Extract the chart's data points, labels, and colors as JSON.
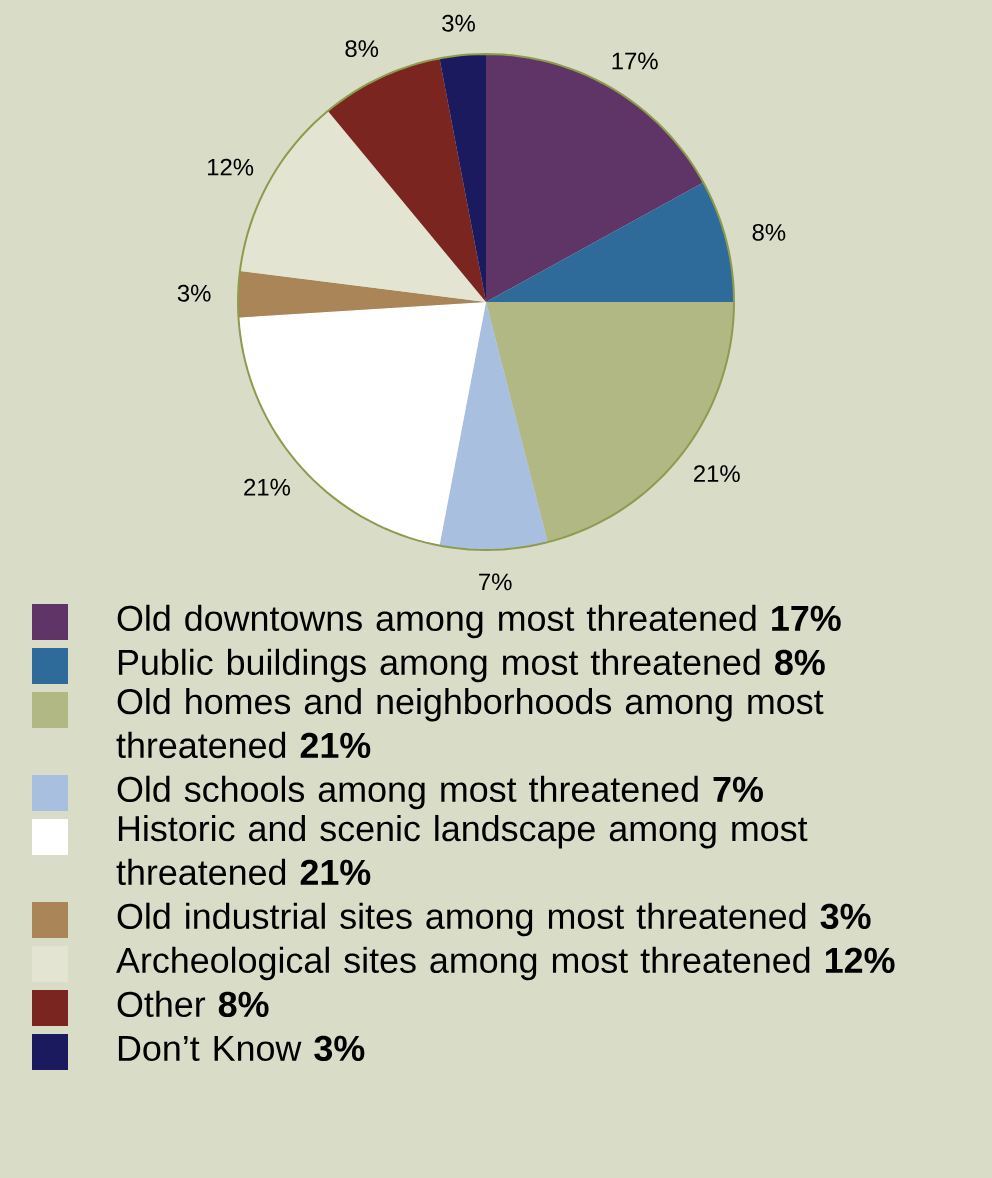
{
  "chart_data": {
    "type": "pie",
    "categories": [
      "Old downtowns among most threatened **17%**",
      "Public buildings among most threatened **8%**",
      "Old homes and neighborhoods among most threatened **21%**",
      "Old schools among most threatened **7%**",
      "Historic and scenic landscape among most threatened **21%**",
      "Old industrial sites among most threatened **3%**",
      "Archeological sites among most threatened **12%**",
      "Other **8%**",
      "Don’t Know **3%**"
    ],
    "values": [
      17,
      8,
      21,
      7,
      21,
      3,
      12,
      8,
      3
    ],
    "colors": [
      "#5e3566",
      "#2e6a9a",
      "#b2b884",
      "#a9bfe0",
      "#ffffff",
      "#a98558",
      "#e4e4d2",
      "#7b2520",
      "#1c1a5e"
    ],
    "value_labels": [
      "17%",
      "8%",
      "21%",
      "7%",
      "21%",
      "3%",
      "12%",
      "8%",
      "3%"
    ],
    "data_labels": true,
    "legend": "bottom"
  }
}
